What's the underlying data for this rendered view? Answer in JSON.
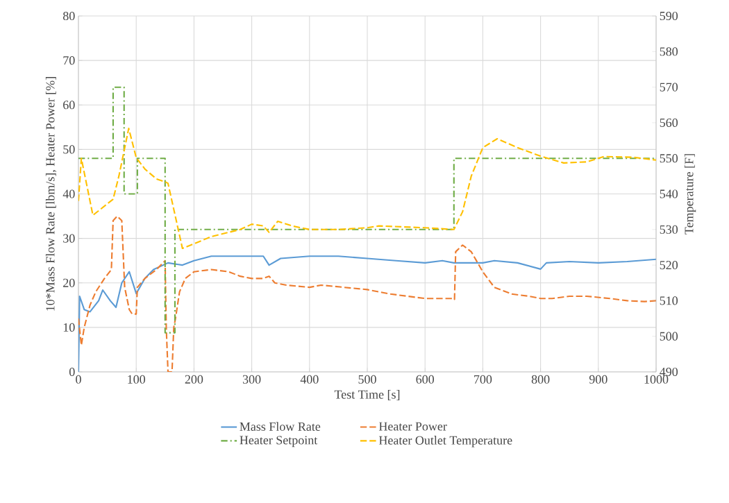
{
  "chart_data": {
    "type": "line",
    "xlabel": "Test Time [s]",
    "ylabel": "10*Mass Flow Rate [lbm/s], Heater Power [%]",
    "y2label": "Temperature [F]",
    "xlim": [
      0,
      1000
    ],
    "xticks": [
      0,
      100,
      200,
      300,
      400,
      500,
      600,
      700,
      800,
      900,
      1000
    ],
    "ylim": [
      0,
      80
    ],
    "yticks": [
      0,
      10,
      20,
      30,
      40,
      50,
      60,
      70,
      80
    ],
    "y2lim": [
      490,
      590
    ],
    "y2ticks": [
      490,
      500,
      510,
      520,
      530,
      540,
      550,
      560,
      570,
      580,
      590
    ],
    "grid": true,
    "legend": "bottom",
    "marker": "none",
    "series": [
      {
        "name": "Mass Flow Rate",
        "color": "#5b9bd5",
        "line_style": "solid",
        "x": [
          0,
          2,
          10,
          20,
          35,
          42,
          55,
          65,
          75,
          88,
          100,
          115,
          130,
          155,
          180,
          200,
          230,
          320,
          330,
          350,
          400,
          450,
          500,
          550,
          600,
          630,
          650,
          700,
          720,
          760,
          800,
          810,
          850,
          900,
          950,
          1000
        ],
        "values": [
          0,
          17,
          14,
          13.5,
          16,
          18.4,
          16,
          14.5,
          20,
          22.5,
          17.6,
          21,
          23,
          24.5,
          24,
          25,
          26,
          26,
          24,
          25.5,
          26,
          26,
          25.5,
          25,
          24.5,
          25,
          24.5,
          24.5,
          25,
          24.5,
          23.1,
          24.5,
          24.8,
          24.5,
          24.8,
          25.3
        ]
      },
      {
        "name": "Heater Power",
        "color": "#ed7d31",
        "line_style": "dashed",
        "x": [
          0,
          5,
          10,
          20,
          30,
          45,
          57,
          60,
          67,
          75,
          80,
          88,
          93,
          100,
          102,
          115,
          135,
          150,
          152,
          155,
          162,
          165,
          168,
          175,
          185,
          200,
          230,
          260,
          280,
          300,
          320,
          330,
          340,
          360,
          400,
          420,
          460,
          500,
          540,
          570,
          600,
          650,
          651,
          653,
          665,
          680,
          700,
          720,
          750,
          780,
          800,
          820,
          850,
          880,
          920,
          950,
          980,
          1000
        ],
        "values": [
          12,
          6,
          10,
          15,
          18,
          21,
          23,
          34,
          35,
          34,
          19,
          14,
          13,
          13,
          19,
          21,
          23,
          25,
          10,
          0,
          0,
          10,
          12,
          18,
          21,
          22.5,
          23,
          22.5,
          21.5,
          21,
          21,
          21.5,
          20,
          19.5,
          19,
          19.5,
          19,
          18.5,
          17.5,
          17,
          16.5,
          16.5,
          16.3,
          27,
          28.5,
          27,
          22.5,
          19,
          17.5,
          17,
          16.5,
          16.5,
          17,
          17,
          16.5,
          16,
          15.8,
          16
        ]
      },
      {
        "name": "Heater Setpoint",
        "color": "#70ad47",
        "line_style": "dashdot",
        "axis": "y2",
        "x": [
          0,
          60,
          60,
          79,
          79,
          102,
          102,
          150,
          150,
          167,
          167,
          650,
          650,
          1000
        ],
        "values": [
          550,
          550,
          570,
          570,
          540,
          540,
          550,
          550,
          501,
          501,
          530,
          530,
          550,
          550
        ]
      },
      {
        "name": "Heater Outlet Temperature",
        "color": "#ffc000",
        "line_style": "dashed",
        "axis": "y2",
        "x": [
          0,
          5,
          25,
          60,
          70,
          87,
          100,
          115,
          135,
          150,
          155,
          180,
          200,
          230,
          280,
          300,
          320,
          330,
          345,
          370,
          400,
          450,
          500,
          520,
          600,
          650,
          665,
          680,
          700,
          725,
          760,
          800,
          840,
          880,
          910,
          960,
          1000
        ],
        "values": [
          538,
          550,
          534,
          538.5,
          545,
          558.4,
          550.2,
          547,
          544.2,
          543.4,
          543,
          524.7,
          526,
          528,
          530,
          531.5,
          531,
          529.2,
          532.3,
          531,
          530,
          530,
          530.5,
          531,
          530.5,
          530,
          535,
          545,
          553,
          555.5,
          553,
          550.6,
          548.7,
          549,
          550.5,
          550.3,
          549.5
        ]
      }
    ]
  }
}
